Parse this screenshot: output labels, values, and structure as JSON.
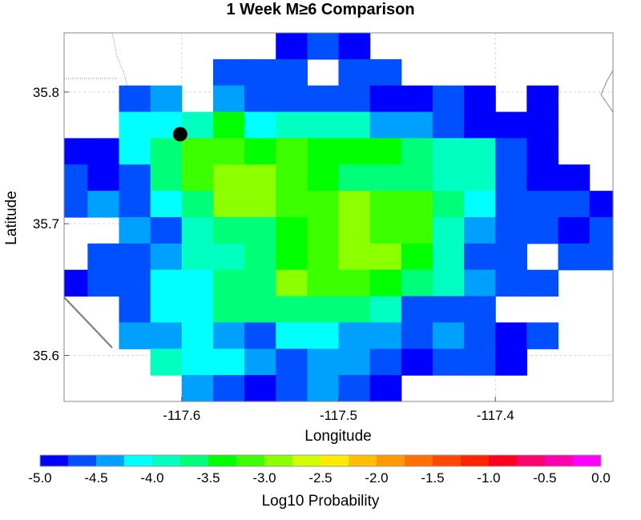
{
  "chart_data": {
    "type": "heatmap",
    "title": "1 Week M≥6 Comparison",
    "xlabel": "Longitude",
    "ylabel": "Latitude",
    "xlim": [
      -117.675,
      -117.325
    ],
    "ylim": [
      35.565,
      35.845
    ],
    "x_ticks": [
      -117.6,
      -117.5,
      -117.4
    ],
    "x_tick_labels": [
      "-117.6",
      "-117.5",
      "-117.4"
    ],
    "y_ticks": [
      35.6,
      35.7,
      35.8
    ],
    "y_tick_labels": [
      "35.6",
      "35.7",
      "35.8"
    ],
    "grid": true,
    "cell_size_deg": [
      0.02,
      0.02
    ],
    "cells_origin_lon": -117.68,
    "cells_top_lat": 35.845,
    "cells_value_units": "log10 probability",
    "cells": [
      [
        null,
        null,
        null,
        null,
        null,
        null,
        null,
        -5.0,
        -4.75,
        -5.0,
        null,
        null,
        null,
        null,
        null,
        null,
        null,
        null
      ],
      [
        null,
        null,
        null,
        null,
        null,
        -4.75,
        -4.75,
        -4.75,
        null,
        -4.75,
        -4.75,
        null,
        null,
        null,
        null,
        null,
        null,
        null
      ],
      [
        null,
        null,
        -4.75,
        -4.5,
        null,
        -4.5,
        -4.75,
        -4.75,
        -4.75,
        -4.75,
        -5.0,
        -5.0,
        -4.75,
        -5.0,
        null,
        -5.0,
        null,
        null
      ],
      [
        null,
        null,
        -4.25,
        -4.25,
        -4.0,
        -3.5,
        -4.25,
        -4.0,
        -4.0,
        -4.0,
        -4.5,
        -4.5,
        -4.75,
        -5.0,
        -5.0,
        -5.0,
        null,
        null
      ],
      [
        -5.0,
        -5.0,
        -4.25,
        -3.75,
        -3.25,
        -3.25,
        -3.5,
        -3.25,
        -3.5,
        -3.5,
        -3.5,
        -3.75,
        -4.0,
        -4.0,
        -4.75,
        -5.0,
        null,
        null
      ],
      [
        -4.75,
        -5.0,
        -4.75,
        -3.75,
        -3.25,
        -3.0,
        -3.0,
        -3.25,
        -3.5,
        -3.75,
        -3.75,
        -3.75,
        -4.0,
        -4.0,
        -4.75,
        -5.0,
        -5.0,
        null
      ],
      [
        -4.75,
        -4.5,
        -4.75,
        -4.25,
        -3.75,
        -3.0,
        -3.0,
        -3.25,
        -3.25,
        -3.0,
        -3.25,
        -3.25,
        -3.75,
        -4.25,
        -4.75,
        -4.75,
        -4.75,
        -5.0
      ],
      [
        null,
        null,
        -4.5,
        -4.75,
        -4.0,
        -3.75,
        -3.75,
        -3.5,
        -3.25,
        -3.0,
        -3.25,
        -3.25,
        -4.0,
        -4.5,
        -4.75,
        -4.75,
        -5.0,
        -4.75
      ],
      [
        null,
        -4.75,
        -4.75,
        -4.5,
        -4.0,
        -4.0,
        -3.75,
        -3.5,
        -3.25,
        -3.0,
        -3.0,
        -3.5,
        -4.0,
        -4.75,
        -4.75,
        null,
        -4.75,
        -4.75
      ],
      [
        -5.0,
        -4.75,
        -4.75,
        -4.25,
        -4.25,
        -3.75,
        -3.75,
        -3.0,
        -3.25,
        -3.25,
        -3.5,
        -3.75,
        -4.0,
        -4.5,
        -4.75,
        -4.75,
        null,
        null
      ],
      [
        null,
        null,
        -4.75,
        -4.25,
        -4.25,
        -3.75,
        -3.75,
        -3.75,
        -3.75,
        -3.75,
        -4.0,
        -4.75,
        -4.75,
        -4.75,
        null,
        null,
        null,
        null
      ],
      [
        null,
        null,
        -4.5,
        -4.5,
        -4.25,
        -4.5,
        -4.75,
        -4.25,
        -4.25,
        -4.5,
        -4.5,
        -4.75,
        -4.5,
        -4.75,
        -5.0,
        -4.75,
        null,
        null
      ],
      [
        null,
        null,
        null,
        -4.0,
        -4.25,
        -4.25,
        -4.5,
        -4.75,
        -4.5,
        -4.5,
        -4.75,
        -5.0,
        -4.75,
        -4.75,
        -5.0,
        null,
        null,
        null
      ],
      [
        null,
        null,
        null,
        null,
        -4.5,
        -4.75,
        -5.0,
        -4.75,
        -4.5,
        -4.75,
        -5.0,
        null,
        null,
        null,
        null,
        null,
        null,
        null
      ]
    ],
    "marker": {
      "lon": -117.601,
      "lat": 35.768,
      "color": "#000000"
    },
    "colorbar": {
      "label": "Log10 Probability",
      "min": -5.0,
      "max": 0.0,
      "tick_labels": [
        "-5.0",
        "-4.5",
        "-4.0",
        "-3.5",
        "-3.0",
        "-2.5",
        "-2.0",
        "-1.5",
        "-1.0",
        "-0.5",
        "0.0"
      ],
      "colors": [
        "#0000ff",
        "#0050ff",
        "#00a0ff",
        "#00ffff",
        "#00ffc0",
        "#00ff78",
        "#00ff00",
        "#3cff00",
        "#8cff00",
        "#d0ff00",
        "#ffea00",
        "#ffbf00",
        "#ff9900",
        "#ff7000",
        "#ff4800",
        "#ff2400",
        "#ff0020",
        "#ff0070",
        "#ff00b0",
        "#ff00ff"
      ]
    }
  }
}
